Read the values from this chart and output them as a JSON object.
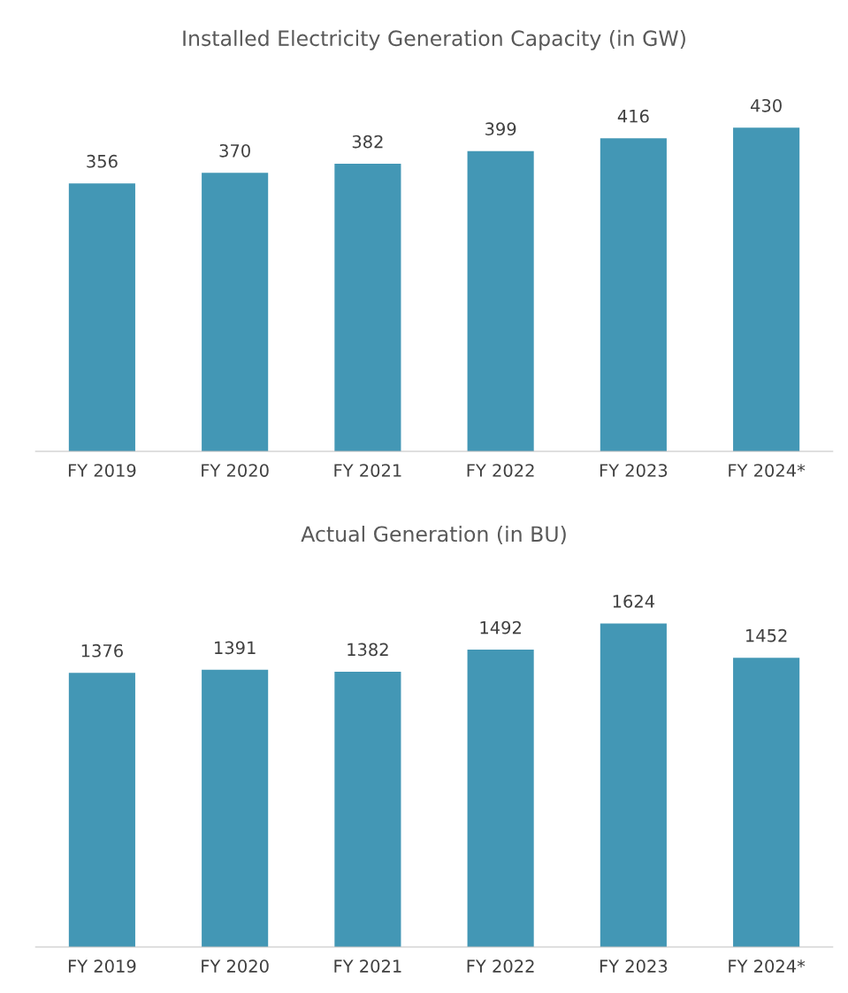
{
  "chart_data": [
    {
      "type": "bar",
      "title": "Installed Electricity Generation Capacity (in GW)",
      "categories": [
        "FY 2019",
        "FY 2020",
        "FY 2021",
        "FY 2022",
        "FY 2023",
        "FY 2024*"
      ],
      "values": [
        356,
        370,
        382,
        399,
        416,
        430
      ],
      "color": "#4397b5",
      "data_labels": true,
      "grid": false,
      "tick_labels": "x"
    },
    {
      "type": "bar",
      "title": "Actual Generation (in BU)",
      "categories": [
        "FY 2019",
        "FY 2020",
        "FY 2021",
        "FY 2022",
        "FY 2023",
        "FY 2024*"
      ],
      "values": [
        1376,
        1391,
        1382,
        1492,
        1624,
        1452
      ],
      "color": "#4397b5",
      "data_labels": true,
      "grid": false,
      "tick_labels": "x"
    }
  ]
}
